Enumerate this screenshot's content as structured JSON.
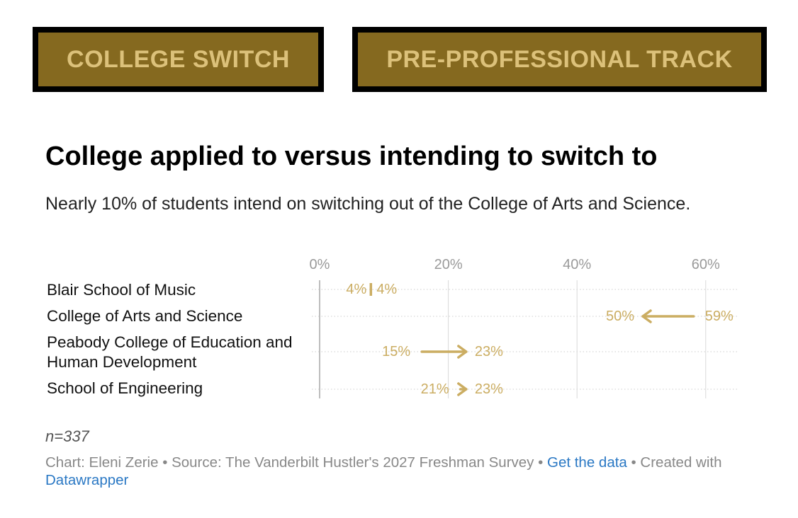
{
  "tabs": [
    {
      "label": "COLLEGE SWITCH"
    },
    {
      "label": "PRE-PROFESSIONAL TRACK"
    }
  ],
  "colors": {
    "tab_bg": "#85691f",
    "tab_text": "#dcc17a",
    "tab_border": "#000000",
    "accent": "#cbad62",
    "grid": "#d8d8d8",
    "axis_text": "#9a9a9a",
    "link": "#2a78c4"
  },
  "chart_data": {
    "type": "arrow",
    "title": "College applied to versus intending to switch to",
    "subtitle": "Nearly 10% of students intend on switching out of the College of Arts and Science.",
    "xlim": [
      0,
      65
    ],
    "x_ticks": [
      {
        "value": 0,
        "label": "0%"
      },
      {
        "value": 20,
        "label": "20%"
      },
      {
        "value": 40,
        "label": "40%"
      },
      {
        "value": 60,
        "label": "60%"
      }
    ],
    "grid": true,
    "rows": [
      {
        "label": "Blair School of Music",
        "from": 4,
        "to": 4,
        "from_label": "4%",
        "to_label": "4%"
      },
      {
        "label": "College of Arts and Science",
        "from": 59,
        "to": 50,
        "from_label": "59%",
        "to_label": "50%"
      },
      {
        "label": "Peabody College of Education and Human Development",
        "from": 15,
        "to": 23,
        "from_label": "15%",
        "to_label": "23%"
      },
      {
        "label": "School of Engineering",
        "from": 21,
        "to": 23,
        "from_label": "21%",
        "to_label": "23%"
      }
    ]
  },
  "notes": {
    "n": "n=337"
  },
  "footer": {
    "credit": "Chart: Eleni Zerie • Source: The Vanderbilt Hustler's 2027 Freshman Survey •",
    "get_data": "Get the data",
    "created": "• Created with",
    "datawrapper": "Datawrapper"
  }
}
